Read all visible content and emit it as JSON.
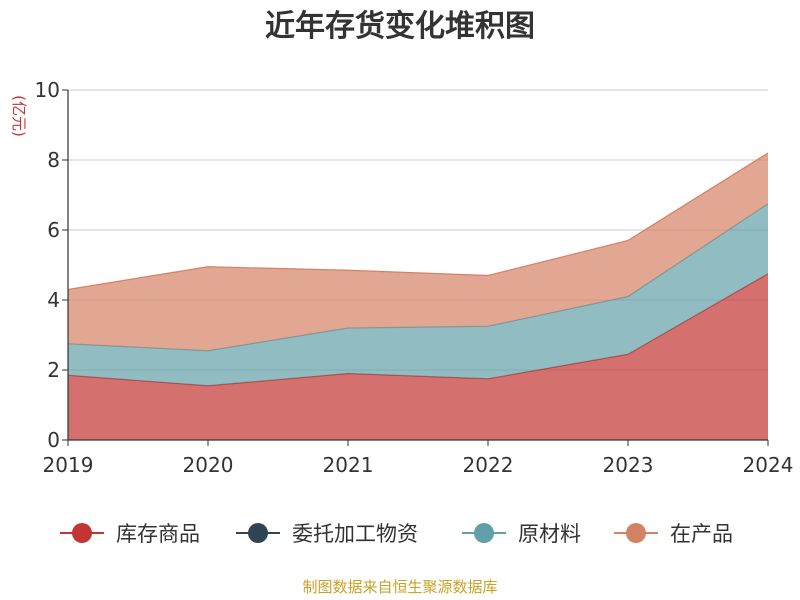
{
  "chart_data": {
    "type": "area",
    "stacked": true,
    "title": "近年存货变化堆积图",
    "ylabel": "",
    "unit_label": "(亿元)",
    "x": [
      "2019",
      "2020",
      "2021",
      "2022",
      "2023",
      "2024"
    ],
    "ylim": [
      0,
      10
    ],
    "yticks": [
      "0",
      "2",
      "4",
      "6",
      "8",
      "10"
    ],
    "grid": true,
    "legend_position": "bottom",
    "series": [
      {
        "name": "库存商品",
        "values": [
          1.85,
          1.55,
          1.9,
          1.75,
          2.45,
          4.75
        ],
        "color": "#c23531"
      },
      {
        "name": "委托加工物资",
        "values": [
          0.0,
          0.0,
          0.0,
          0.0,
          0.0,
          0.0
        ],
        "color": "#2f4554"
      },
      {
        "name": "原材料",
        "values": [
          0.9,
          1.0,
          1.3,
          1.5,
          1.65,
          2.0
        ],
        "color": "#61a0a8"
      },
      {
        "name": "在产品",
        "values": [
          1.55,
          2.4,
          1.65,
          1.45,
          1.6,
          1.45
        ],
        "color": "#d48265"
      }
    ],
    "source": "制图数据来自恒生聚源数据库"
  }
}
